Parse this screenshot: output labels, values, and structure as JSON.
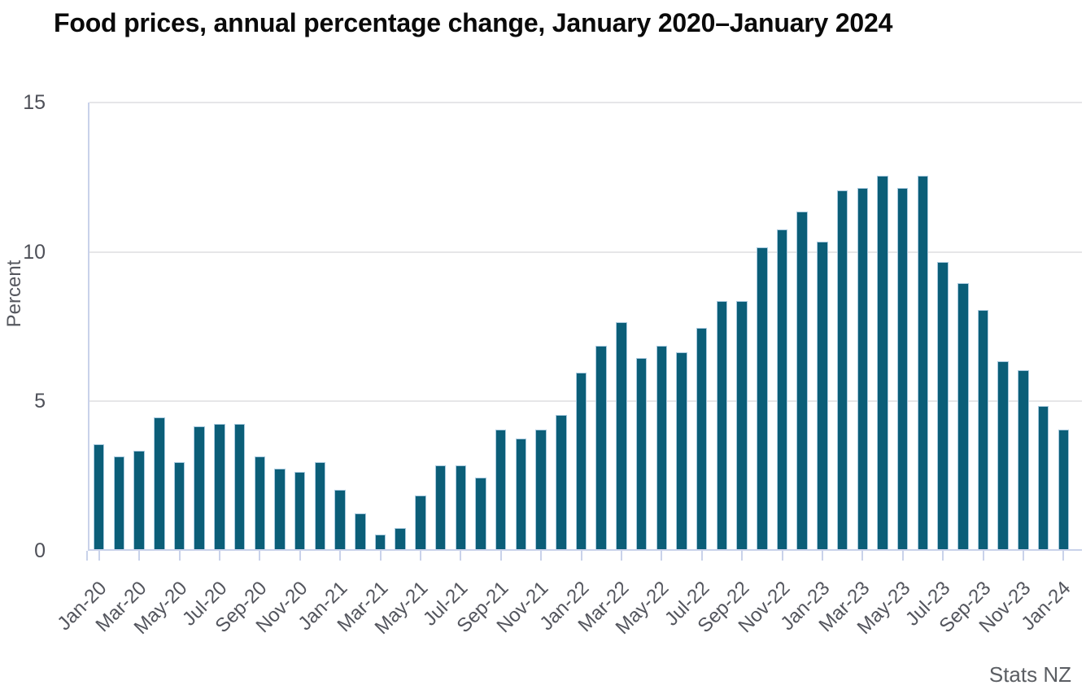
{
  "page": {
    "source": "Stats NZ"
  },
  "chart_data": {
    "type": "bar",
    "title": "Food prices, annual percentage change, January 2020–January 2024",
    "xlabel": "",
    "ylabel": "Percent",
    "ylim": [
      0,
      15
    ],
    "yticks": [
      0,
      5,
      10,
      15
    ],
    "grid": "horizontal gridlines at 5, 10, 15",
    "legend": "none",
    "bar_color": "#0b5e78",
    "bar_stroke_color": "#a9cadf",
    "axis_color": "#c9d2ea",
    "gridline_color": "#e6e6e8",
    "label_color": "#53555d",
    "categories": [
      "Jan-20",
      "Feb-20",
      "Mar-20",
      "Apr-20",
      "May-20",
      "Jun-20",
      "Jul-20",
      "Aug-20",
      "Sep-20",
      "Oct-20",
      "Nov-20",
      "Dec-20",
      "Jan-21",
      "Feb-21",
      "Mar-21",
      "Apr-21",
      "May-21",
      "Jun-21",
      "Jul-21",
      "Aug-21",
      "Sep-21",
      "Oct-21",
      "Nov-21",
      "Dec-21",
      "Jan-22",
      "Feb-22",
      "Mar-22",
      "Apr-22",
      "May-22",
      "Jun-22",
      "Jul-22",
      "Aug-22",
      "Sep-22",
      "Oct-22",
      "Nov-22",
      "Dec-22",
      "Jan-23",
      "Feb-23",
      "Mar-23",
      "Apr-23",
      "May-23",
      "Jun-23",
      "Jul-23",
      "Aug-23",
      "Sep-23",
      "Oct-23",
      "Nov-23",
      "Dec-23",
      "Jan-24"
    ],
    "values": [
      3.5,
      3.1,
      3.3,
      4.4,
      2.9,
      4.1,
      4.2,
      4.2,
      3.1,
      2.7,
      2.6,
      2.9,
      2.0,
      1.2,
      0.5,
      0.7,
      1.8,
      2.8,
      2.8,
      2.4,
      4.0,
      3.7,
      4.0,
      4.5,
      5.9,
      6.8,
      7.6,
      6.4,
      6.8,
      6.6,
      7.4,
      8.3,
      8.3,
      10.1,
      10.7,
      11.3,
      10.3,
      12.0,
      12.1,
      12.5,
      12.1,
      12.5,
      9.6,
      8.9,
      8.0,
      6.3,
      6.0,
      4.8,
      4.0
    ],
    "xtick_labels": [
      "Jan-20",
      "Mar-20",
      "May-20",
      "Jul-20",
      "Sep-20",
      "Nov-20",
      "Jan-21",
      "Mar-21",
      "May-21",
      "Jul-21",
      "Sep-21",
      "Nov-21",
      "Jan-22",
      "Mar-22",
      "May-22",
      "Jul-22",
      "Sep-22",
      "Nov-22",
      "Jan-23",
      "Mar-23",
      "May-23",
      "Jul-23",
      "Sep-23",
      "Nov-23",
      "Jan-24"
    ],
    "xtick_every_n_months": 2
  }
}
